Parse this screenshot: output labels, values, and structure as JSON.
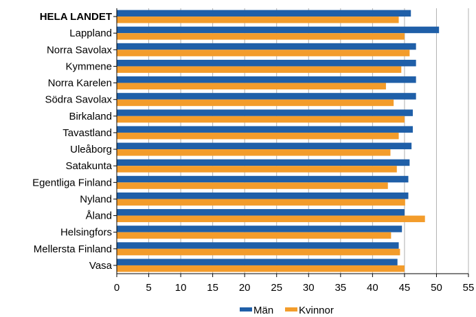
{
  "chart_data": {
    "type": "bar",
    "orientation": "horizontal",
    "categories": [
      "HELA LANDET",
      "Lappland",
      "Norra Savolax",
      "Kymmene",
      "Norra Karelen",
      "Södra Savolax",
      "Birkaland",
      "Tavastland",
      "Uleåborg",
      "Satakunta",
      "Egentliga Finland",
      "Nyland",
      "Åland",
      "Helsingfors",
      "Mellersta Finland",
      "Vasa"
    ],
    "bold_category": "HELA LANDET",
    "series": [
      {
        "name": "Män",
        "color": "#1f5fa8",
        "values": [
          46.0,
          50.4,
          46.8,
          46.8,
          46.8,
          46.8,
          46.3,
          46.3,
          46.1,
          45.8,
          45.6,
          45.6,
          45.0,
          44.6,
          44.1,
          43.9
        ]
      },
      {
        "name": "Kvinnor",
        "color": "#f39c2b",
        "values": [
          44.1,
          45.0,
          45.8,
          44.5,
          42.1,
          43.3,
          45.0,
          44.1,
          42.8,
          43.8,
          42.4,
          45.1,
          48.2,
          42.9,
          44.3,
          45.0
        ]
      }
    ],
    "x_ticks": [
      0,
      5,
      10,
      15,
      20,
      25,
      30,
      35,
      40,
      45,
      50,
      55
    ],
    "xlim": [
      0,
      55
    ],
    "grid": "vertical",
    "legend": "bottom-center"
  }
}
